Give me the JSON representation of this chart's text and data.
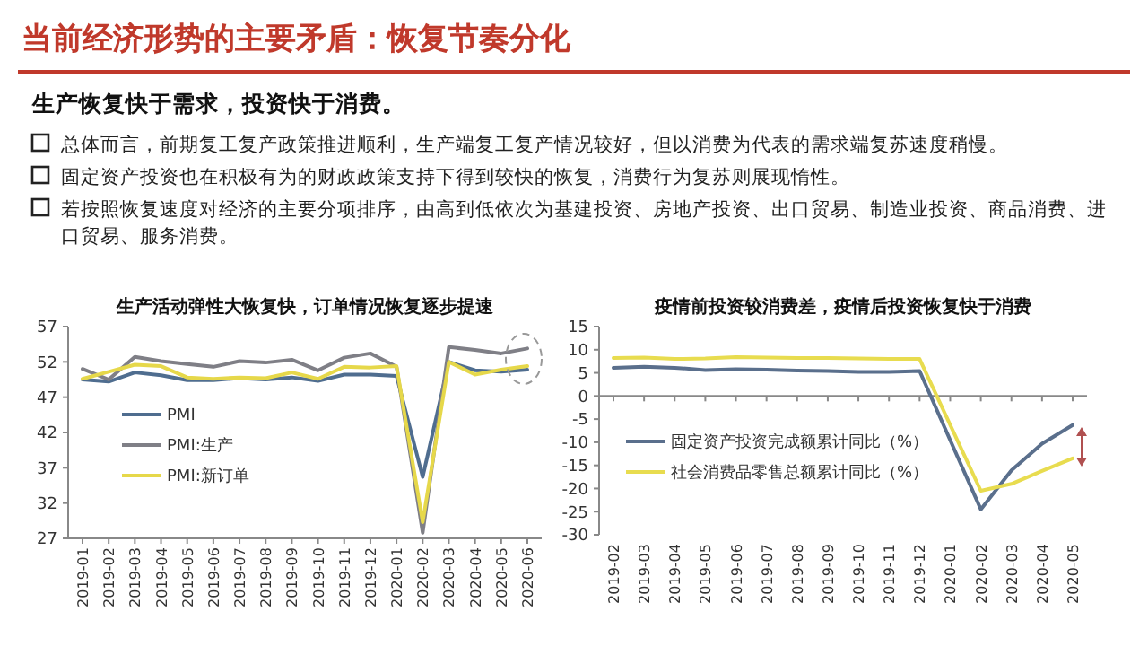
{
  "chart_data": [
    {
      "type": "other",
      "title": "当前经济形势的主要矛盾：恢复节奏分化",
      "subtitle": "生产恢复快于需求，投资快于消费。",
      "annotations": [
        "总体而言，前期复工复产政策推进顺利，生产端复工复产情况较好，但以消费为代表的需求端复苏速度稍慢。",
        "固定资产投资也在积极有为的财政政策支持下得到较快的恢复，消费行为复苏则展现惰性。",
        "若按照恢复速度对经济的主要分项排序，由高到低依次为基建投资、房地产投资、出口贸易、制造业投资、商品消费、进口贸易、服务消费。"
      ]
    },
    {
      "type": "line",
      "title": "生产活动弹性大恢复快，订单情况恢复逐步提速",
      "categories": [
        "2019-01",
        "2019-02",
        "2019-03",
        "2019-04",
        "2019-05",
        "2019-06",
        "2019-07",
        "2019-08",
        "2019-09",
        "2019-10",
        "2019-11",
        "2019-12",
        "2020-01",
        "2020-02",
        "2020-03",
        "2020-04",
        "2020-05",
        "2020-06"
      ],
      "ylim": [
        27,
        57
      ],
      "yticks": [
        27,
        32,
        37,
        42,
        47,
        52,
        57
      ],
      "legend": "left",
      "grid": false,
      "series": [
        {
          "name": "PMI",
          "color": "#4f6d8f",
          "values": [
            49.5,
            49.2,
            50.5,
            50.1,
            49.4,
            49.4,
            49.7,
            49.5,
            49.8,
            49.3,
            50.2,
            50.2,
            50.0,
            35.7,
            52.0,
            50.8,
            50.6,
            50.9
          ]
        },
        {
          "name": "PMI:生产",
          "color": "#7f7f86",
          "values": [
            51.0,
            49.5,
            52.7,
            52.1,
            51.7,
            51.3,
            52.1,
            51.9,
            52.3,
            50.8,
            52.6,
            53.2,
            51.3,
            27.8,
            54.1,
            53.7,
            53.2,
            53.9
          ]
        },
        {
          "name": "PMI:新订单",
          "color": "#e6d84a",
          "values": [
            49.6,
            50.6,
            51.6,
            51.4,
            49.8,
            49.6,
            49.8,
            49.7,
            50.5,
            49.6,
            51.3,
            51.2,
            51.4,
            29.3,
            52.0,
            50.2,
            50.9,
            51.4
          ]
        }
      ]
    },
    {
      "type": "line",
      "title": "疫情前投资较消费差，疫情后投资恢复快于消费",
      "categories": [
        "2019-02",
        "2019-03",
        "2019-04",
        "2019-05",
        "2019-06",
        "2019-07",
        "2019-08",
        "2019-09",
        "2019-10",
        "2019-11",
        "2019-12",
        "2020-01",
        "2020-02",
        "2020-03",
        "2020-04",
        "2020-05"
      ],
      "ylim": [
        -30,
        15
      ],
      "yticks": [
        -30,
        -25,
        -20,
        -15,
        -10,
        -5,
        0,
        5,
        10,
        15
      ],
      "legend": "bottom left",
      "grid": false,
      "ref_lines": [
        {
          "axis": "y",
          "value": 0
        }
      ],
      "series": [
        {
          "name": "固定资产投资完成额累计同比（%）",
          "color": "#5a6f8c",
          "values": [
            6.1,
            6.3,
            6.1,
            5.6,
            5.8,
            5.7,
            5.5,
            5.4,
            5.2,
            5.2,
            5.4,
            null,
            -24.5,
            -16.1,
            -10.3,
            -6.3
          ]
        },
        {
          "name": "社会消费品零售总额累计同比（%）",
          "color": "#e8dc4f",
          "values": [
            8.2,
            8.3,
            8.0,
            8.1,
            8.4,
            8.3,
            8.2,
            8.2,
            8.1,
            8.0,
            8.0,
            null,
            -20.5,
            -19.0,
            -16.2,
            -13.5
          ]
        }
      ]
    }
  ]
}
